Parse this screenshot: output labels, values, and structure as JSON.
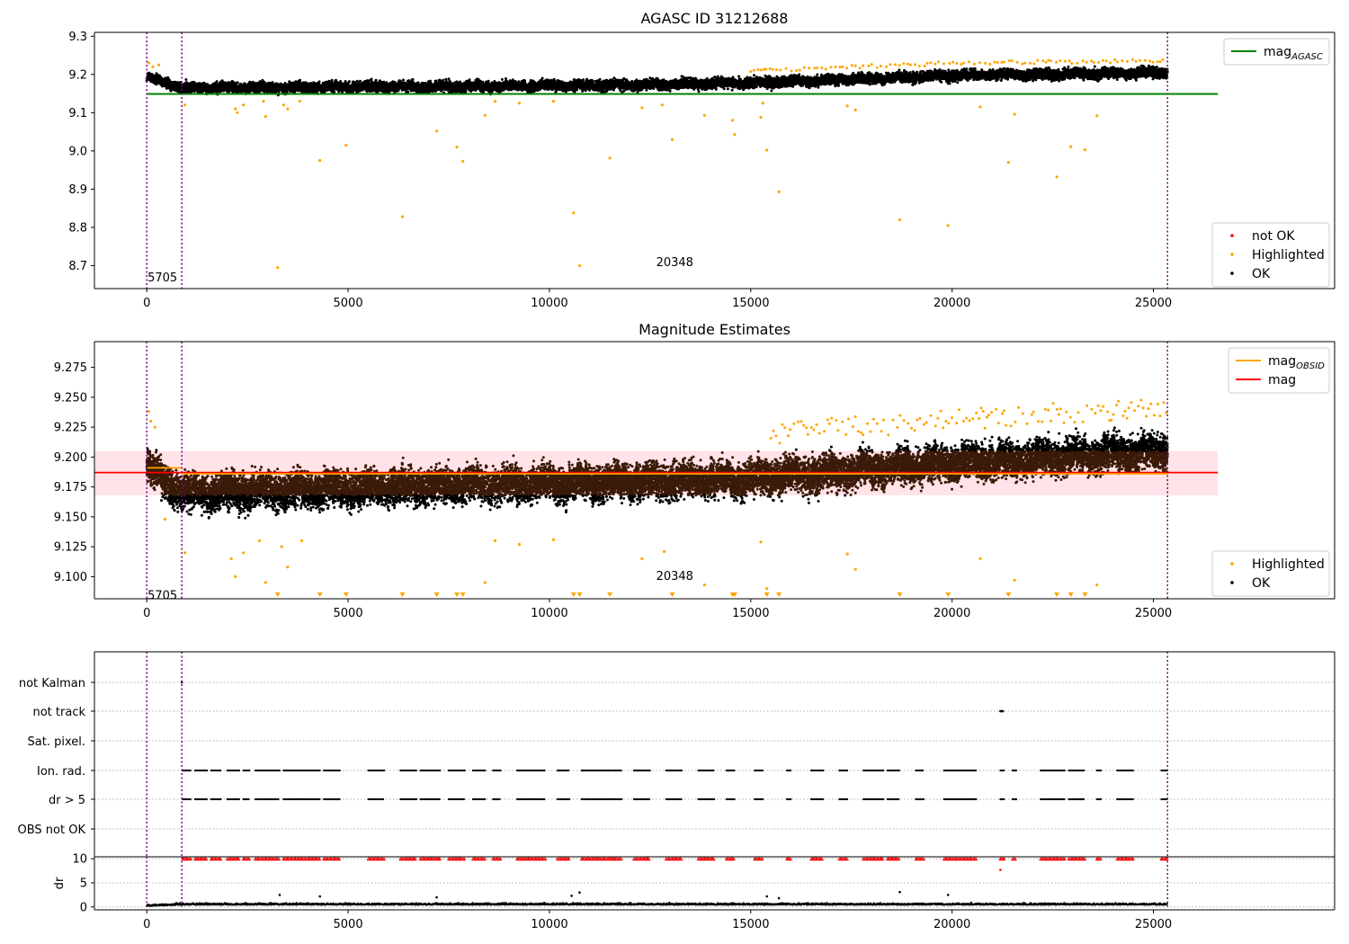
{
  "colors": {
    "ok": "#000000",
    "highlighted": "#ffa500",
    "not_ok": "#ff0000",
    "mag_agasc": "#008000",
    "mag_obsid": "#ffa500",
    "mag": "#ff0000",
    "band_fill": "#ffc0cb",
    "obs_line": "#800080",
    "flag_points": "#000000",
    "dr_points": "#000000",
    "dr_limit_markers": "#ff0000"
  },
  "chart_data": [
    {
      "type": "scatter",
      "title": "AGASC ID 31212688",
      "xlim": [
        -1300,
        29500
      ],
      "ylim": [
        8.64,
        9.31
      ],
      "xticks": [
        "0",
        "5000",
        "10000",
        "15000",
        "20000",
        "25000"
      ],
      "yticks": [
        "8.7",
        "8.8",
        "8.9",
        "9.0",
        "9.1",
        "9.2",
        "9.3"
      ],
      "grid": false,
      "obs_boundaries": [
        0,
        870,
        25350
      ],
      "obs_labels": [
        {
          "text": "5705",
          "x": 20,
          "y": 8.67
        },
        {
          "text": "20348",
          "x": 12650,
          "y": 8.71
        }
      ],
      "reference_lines": [
        {
          "name": "mag_AGASC",
          "y": 9.149,
          "x_range": [
            0,
            26600
          ],
          "color": "#008000"
        }
      ],
      "series": [
        {
          "name": "OK",
          "trend": [
            [
              0,
              9.195
            ],
            [
              870,
              9.165
            ],
            [
              10000,
              9.17
            ],
            [
              15000,
              9.178
            ],
            [
              20000,
              9.197
            ],
            [
              25350,
              9.205
            ]
          ],
          "spread": 0.045,
          "color": "#000000"
        },
        {
          "name": "Highlighted",
          "points": [
            [
              50,
              9.23
            ],
            [
              150,
              9.22
            ],
            [
              300,
              9.225
            ],
            [
              950,
              9.12
            ],
            [
              2200,
              9.11
            ],
            [
              2250,
              9.1
            ],
            [
              2400,
              9.12
            ],
            [
              2900,
              9.13
            ],
            [
              2950,
              9.09
            ],
            [
              3400,
              9.12
            ],
            [
              3500,
              9.11
            ],
            [
              3800,
              9.13
            ],
            [
              4300,
              8.975
            ],
            [
              4950,
              9.015
            ],
            [
              6350,
              8.828
            ],
            [
              7200,
              9.052
            ],
            [
              7700,
              9.01
            ],
            [
              7850,
              8.973
            ],
            [
              8400,
              9.093
            ],
            [
              8650,
              9.13
            ],
            [
              9250,
              9.125
            ],
            [
              10100,
              9.13
            ],
            [
              10600,
              8.838
            ],
            [
              10750,
              8.7
            ],
            [
              11500,
              8.981
            ],
            [
              12300,
              9.113
            ],
            [
              12800,
              9.12
            ],
            [
              13050,
              9.03
            ],
            [
              13850,
              9.093
            ],
            [
              14550,
              9.08
            ],
            [
              14600,
              9.043
            ],
            [
              15250,
              9.088
            ],
            [
              15300,
              9.125
            ],
            [
              15400,
              9.002
            ],
            [
              15700,
              8.893
            ],
            [
              17400,
              9.118
            ],
            [
              17600,
              9.107
            ],
            [
              18700,
              8.82
            ],
            [
              19900,
              8.805
            ],
            [
              20700,
              9.115
            ],
            [
              21400,
              8.97
            ],
            [
              21550,
              9.096
            ],
            [
              22600,
              8.932
            ],
            [
              22950,
              9.011
            ],
            [
              23300,
              9.003
            ],
            [
              23600,
              9.092
            ],
            [
              3250,
              8.695
            ]
          ],
          "color": "#ffa500"
        }
      ],
      "legends": [
        {
          "position": "upper right",
          "entries": [
            {
              "label": "mag",
              "subscript": "AGASC",
              "kind": "line",
              "color": "#008000"
            }
          ]
        },
        {
          "position": "lower right",
          "entries": [
            {
              "label": "not OK",
              "kind": "marker",
              "color": "#ff0000"
            },
            {
              "label": "Highlighted",
              "kind": "marker",
              "color": "#ffa500"
            },
            {
              "label": "OK",
              "kind": "marker",
              "color": "#000000"
            }
          ]
        }
      ]
    },
    {
      "type": "scatter",
      "title": "Magnitude Estimates",
      "xlim": [
        -1300,
        29500
      ],
      "ylim": [
        9.0815,
        9.2965
      ],
      "xticks": [
        "0",
        "5000",
        "10000",
        "15000",
        "20000",
        "25000"
      ],
      "yticks": [
        "9.100",
        "9.125",
        "9.150",
        "9.175",
        "9.200",
        "9.225",
        "9.250",
        "9.275"
      ],
      "grid": false,
      "obs_boundaries": [
        0,
        870,
        25350
      ],
      "obs_labels": [
        {
          "text": "5705",
          "x": 20,
          "y": 9.085
        },
        {
          "text": "20348",
          "x": 12650,
          "y": 9.101
        }
      ],
      "band": {
        "x_range": [
          -1300,
          26600
        ],
        "y_range": [
          9.168,
          9.205
        ]
      },
      "reference_lines": [
        {
          "name": "mag",
          "y": 9.187,
          "x_range": [
            -1300,
            26600
          ],
          "color": "#ff0000"
        },
        {
          "name": "mag_OBSID",
          "y": 9.191,
          "x_range": [
            0,
            870
          ],
          "color": "#ffa500"
        },
        {
          "name": "mag_OBSID",
          "y": 9.186,
          "x_range": [
            870,
            25350
          ],
          "color": "#ffa500"
        }
      ],
      "series": [
        {
          "name": "OK",
          "trend": [
            [
              0,
              9.19
            ],
            [
              870,
              9.17
            ],
            [
              10000,
              9.178
            ],
            [
              15000,
              9.182
            ],
            [
              20000,
              9.195
            ],
            [
              25350,
              9.205
            ]
          ],
          "spread": 0.05,
          "color": "#000000"
        },
        {
          "name": "Highlighted",
          "points": [
            [
              50,
              9.238
            ],
            [
              100,
              9.23
            ],
            [
              200,
              9.225
            ],
            [
              450,
              9.148
            ],
            [
              950,
              9.12
            ],
            [
              2100,
              9.115
            ],
            [
              2200,
              9.1
            ],
            [
              2400,
              9.12
            ],
            [
              2800,
              9.13
            ],
            [
              2950,
              9.095
            ],
            [
              3350,
              9.125
            ],
            [
              3500,
              9.108
            ],
            [
              3850,
              9.13
            ],
            [
              8400,
              9.095
            ],
            [
              8650,
              9.13
            ],
            [
              9250,
              9.127
            ],
            [
              10100,
              9.131
            ],
            [
              12300,
              9.115
            ],
            [
              12850,
              9.121
            ],
            [
              13850,
              9.093
            ],
            [
              15250,
              9.129
            ],
            [
              15400,
              9.09
            ],
            [
              17400,
              9.119
            ],
            [
              17600,
              9.106
            ],
            [
              20700,
              9.115
            ],
            [
              21550,
              9.097
            ],
            [
              23600,
              9.093
            ]
          ],
          "color": "#ffa500"
        },
        {
          "name": "Highlighted below axis",
          "markers_x": [
            3250,
            4300,
            4950,
            6350,
            7200,
            7700,
            7850,
            10600,
            10750,
            11500,
            13050,
            14550,
            14600,
            15400,
            15700,
            18700,
            19900,
            21400,
            22600,
            22950,
            23300
          ],
          "color": "#ffa500"
        }
      ],
      "legends": [
        {
          "position": "upper right",
          "entries": [
            {
              "label": "mag",
              "subscript": "OBSID",
              "kind": "line",
              "color": "#ffa500"
            },
            {
              "label": "mag",
              "kind": "line",
              "color": "#ff0000"
            }
          ]
        },
        {
          "position": "lower right",
          "entries": [
            {
              "label": "Highlighted",
              "kind": "marker",
              "color": "#ffa500"
            },
            {
              "label": "OK",
              "kind": "marker",
              "color": "#000000"
            }
          ]
        }
      ]
    },
    {
      "type": "scatter",
      "title": "",
      "xlim": [
        -1300,
        29500
      ],
      "categories": [
        "not Kalman",
        "not track",
        "Sat. pixel.",
        "Ion. rad.",
        "dr > 5",
        "OBS not OK"
      ],
      "grid": true,
      "obs_boundaries": [
        0,
        870,
        25350
      ],
      "flags": [
        {
          "name": "not Kalman",
          "x": [
            870
          ]
        },
        {
          "name": "not track",
          "x": [
            21200,
            21220,
            21240,
            21260
          ]
        },
        {
          "name": "Sat. pixel.",
          "x": []
        },
        {
          "name": "Ion. rad.",
          "segments": [
            [
              900,
              1100
            ],
            [
              1200,
              1500
            ],
            [
              1600,
              1850
            ],
            [
              2000,
              2300
            ],
            [
              2400,
              2550
            ],
            [
              2700,
              3300
            ],
            [
              3400,
              4300
            ],
            [
              4400,
              4800
            ],
            [
              5500,
              5900
            ],
            [
              6300,
              6700
            ],
            [
              6800,
              7300
            ],
            [
              7500,
              7900
            ],
            [
              8100,
              8400
            ],
            [
              8600,
              8800
            ],
            [
              9200,
              9900
            ],
            [
              10200,
              10500
            ],
            [
              10800,
              11800
            ],
            [
              12100,
              12500
            ],
            [
              12900,
              13300
            ],
            [
              13700,
              14100
            ],
            [
              14400,
              14600
            ],
            [
              15100,
              15300
            ],
            [
              15900,
              16000
            ],
            [
              16500,
              16800
            ],
            [
              17200,
              17400
            ],
            [
              17800,
              18300
            ],
            [
              18400,
              18700
            ],
            [
              19100,
              19300
            ],
            [
              19800,
              20600
            ],
            [
              21200,
              21300
            ],
            [
              21500,
              21600
            ],
            [
              22200,
              22800
            ],
            [
              22900,
              23300
            ],
            [
              23600,
              23700
            ],
            [
              24100,
              24500
            ],
            [
              25200,
              25350
            ]
          ]
        },
        {
          "name": "dr > 5",
          "segments": [
            [
              900,
              1100
            ],
            [
              1200,
              1500
            ],
            [
              1600,
              1850
            ],
            [
              2000,
              2300
            ],
            [
              2400,
              2550
            ],
            [
              2700,
              3300
            ],
            [
              3400,
              4300
            ],
            [
              4400,
              4800
            ],
            [
              5500,
              5900
            ],
            [
              6300,
              6700
            ],
            [
              6800,
              7300
            ],
            [
              7500,
              7900
            ],
            [
              8100,
              8400
            ],
            [
              8600,
              8800
            ],
            [
              9200,
              9900
            ],
            [
              10200,
              10500
            ],
            [
              10800,
              11800
            ],
            [
              12100,
              12500
            ],
            [
              12900,
              13300
            ],
            [
              13700,
              14100
            ],
            [
              14400,
              14600
            ],
            [
              15100,
              15300
            ],
            [
              15900,
              16000
            ],
            [
              16500,
              16800
            ],
            [
              17200,
              17400
            ],
            [
              17800,
              18300
            ],
            [
              18400,
              18700
            ],
            [
              19100,
              19300
            ],
            [
              19800,
              20600
            ],
            [
              21200,
              21300
            ],
            [
              21500,
              21600
            ],
            [
              22200,
              22800
            ],
            [
              22900,
              23300
            ],
            [
              23600,
              23700
            ],
            [
              24100,
              24500
            ],
            [
              25200,
              25350
            ]
          ]
        },
        {
          "name": "OBS not OK",
          "x": []
        }
      ]
    },
    {
      "type": "scatter",
      "title": "",
      "ylabel": "dr",
      "xlim": [
        -1300,
        29500
      ],
      "ylim": [
        -0.6,
        10.4
      ],
      "xticks": [
        "0",
        "5000",
        "10000",
        "15000",
        "20000",
        "25000"
      ],
      "yticks": [
        "0",
        "5",
        "10"
      ],
      "grid": true,
      "obs_boundaries": [
        0,
        870,
        25350
      ],
      "series": [
        {
          "name": "dr",
          "trend": [
            [
              0,
              0.15
            ],
            [
              870,
              0.45
            ],
            [
              25350,
              0.45
            ]
          ],
          "spread": 0.6,
          "outliers": [
            [
              3300,
              2.5
            ],
            [
              4300,
              2.2
            ],
            [
              7200,
              2.0
            ],
            [
              10550,
              2.3
            ],
            [
              10750,
              3.0
            ],
            [
              15400,
              2.2
            ],
            [
              15700,
              1.8
            ],
            [
              18700,
              3.1
            ],
            [
              19900,
              2.5
            ],
            [
              21200,
              7.7
            ]
          ],
          "color": "#000000"
        },
        {
          "name": "dr limit",
          "y": 10,
          "same_segments_as": "dr > 5",
          "color": "#ff0000"
        }
      ]
    }
  ]
}
